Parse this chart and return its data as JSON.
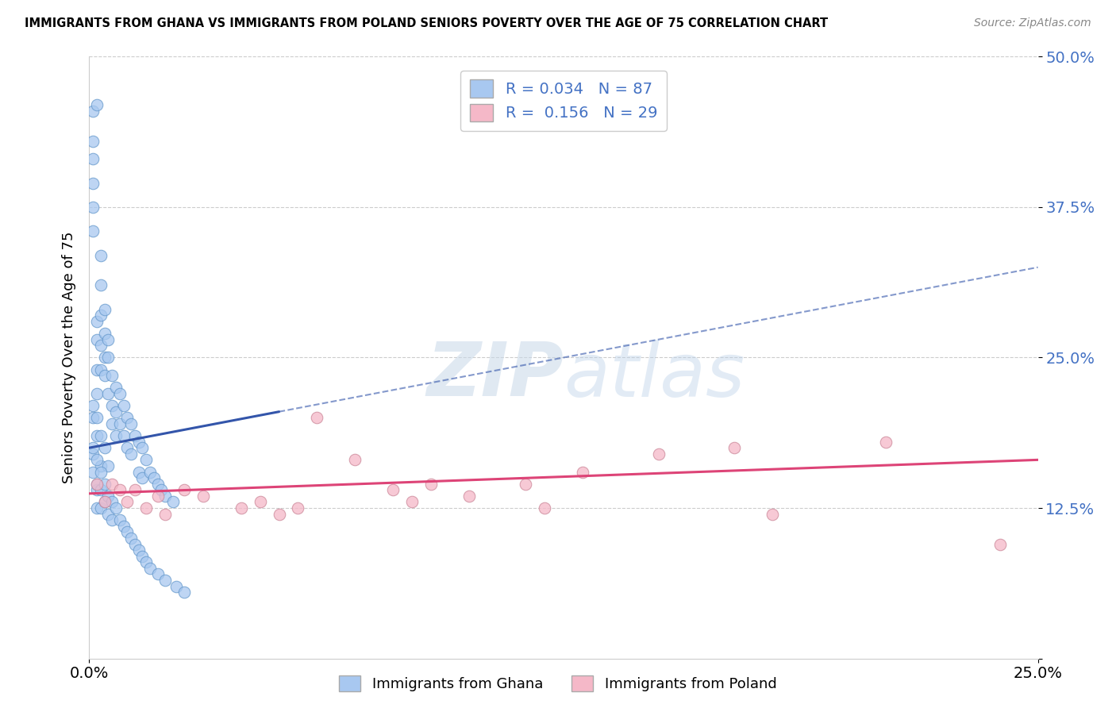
{
  "title": "IMMIGRANTS FROM GHANA VS IMMIGRANTS FROM POLAND SENIORS POVERTY OVER THE AGE OF 75 CORRELATION CHART",
  "source": "Source: ZipAtlas.com",
  "ylabel": "Seniors Poverty Over the Age of 75",
  "xlabel_ghana": "Immigrants from Ghana",
  "xlabel_poland": "Immigrants from Poland",
  "xlim": [
    0.0,
    0.25
  ],
  "ylim": [
    0.0,
    0.5
  ],
  "ytick_vals": [
    0.0,
    0.125,
    0.25,
    0.375,
    0.5
  ],
  "ytick_labels": [
    "",
    "12.5%",
    "25.0%",
    "37.5%",
    "50.0%"
  ],
  "xtick_vals": [
    0.0,
    0.25
  ],
  "xtick_labels": [
    "0.0%",
    "25.0%"
  ],
  "ghana_R": 0.034,
  "ghana_N": 87,
  "poland_R": 0.156,
  "poland_N": 29,
  "ghana_color": "#a8c8f0",
  "ghana_edge_color": "#6699cc",
  "poland_color": "#f5b8c8",
  "poland_edge_color": "#cc8899",
  "ghana_line_color": "#3355aa",
  "poland_line_color": "#dd4477",
  "legend_text_color": "#4472c4",
  "watermark_color": "#d0dce8",
  "ghana_line_x0": 0.0,
  "ghana_line_x1": 0.05,
  "ghana_line_y0": 0.175,
  "ghana_line_y1": 0.205,
  "poland_line_x0": 0.0,
  "poland_line_x1": 0.25,
  "poland_line_y0": 0.137,
  "poland_line_y1": 0.165,
  "ghana_x": [
    0.001,
    0.001,
    0.001,
    0.001,
    0.001,
    0.001,
    0.001,
    0.001,
    0.001,
    0.002,
    0.002,
    0.002,
    0.002,
    0.002,
    0.002,
    0.002,
    0.002,
    0.002,
    0.003,
    0.003,
    0.003,
    0.003,
    0.003,
    0.003,
    0.003,
    0.004,
    0.004,
    0.004,
    0.004,
    0.004,
    0.005,
    0.005,
    0.005,
    0.005,
    0.006,
    0.006,
    0.006,
    0.007,
    0.007,
    0.007,
    0.008,
    0.008,
    0.009,
    0.009,
    0.01,
    0.01,
    0.011,
    0.011,
    0.012,
    0.013,
    0.013,
    0.014,
    0.014,
    0.015,
    0.016,
    0.017,
    0.018,
    0.019,
    0.02,
    0.022,
    0.001,
    0.001,
    0.002,
    0.002,
    0.003,
    0.003,
    0.003,
    0.004,
    0.004,
    0.005,
    0.005,
    0.006,
    0.006,
    0.007,
    0.008,
    0.009,
    0.01,
    0.011,
    0.012,
    0.013,
    0.014,
    0.015,
    0.016,
    0.018,
    0.02,
    0.023,
    0.025
  ],
  "ghana_y": [
    0.455,
    0.43,
    0.415,
    0.395,
    0.375,
    0.355,
    0.21,
    0.2,
    0.17,
    0.46,
    0.28,
    0.265,
    0.24,
    0.22,
    0.2,
    0.185,
    0.14,
    0.125,
    0.335,
    0.31,
    0.285,
    0.26,
    0.24,
    0.185,
    0.16,
    0.29,
    0.27,
    0.25,
    0.235,
    0.175,
    0.265,
    0.25,
    0.22,
    0.16,
    0.235,
    0.21,
    0.195,
    0.225,
    0.205,
    0.185,
    0.22,
    0.195,
    0.21,
    0.185,
    0.2,
    0.175,
    0.195,
    0.17,
    0.185,
    0.18,
    0.155,
    0.175,
    0.15,
    0.165,
    0.155,
    0.15,
    0.145,
    0.14,
    0.135,
    0.13,
    0.175,
    0.155,
    0.165,
    0.145,
    0.155,
    0.14,
    0.125,
    0.145,
    0.13,
    0.135,
    0.12,
    0.13,
    0.115,
    0.125,
    0.115,
    0.11,
    0.105,
    0.1,
    0.095,
    0.09,
    0.085,
    0.08,
    0.075,
    0.07,
    0.065,
    0.06,
    0.055
  ],
  "poland_x": [
    0.002,
    0.004,
    0.006,
    0.008,
    0.01,
    0.012,
    0.015,
    0.018,
    0.02,
    0.025,
    0.03,
    0.04,
    0.045,
    0.05,
    0.055,
    0.06,
    0.07,
    0.08,
    0.085,
    0.09,
    0.1,
    0.115,
    0.12,
    0.13,
    0.15,
    0.17,
    0.18,
    0.21,
    0.24
  ],
  "poland_y": [
    0.145,
    0.13,
    0.145,
    0.14,
    0.13,
    0.14,
    0.125,
    0.135,
    0.12,
    0.14,
    0.135,
    0.125,
    0.13,
    0.12,
    0.125,
    0.2,
    0.165,
    0.14,
    0.13,
    0.145,
    0.135,
    0.145,
    0.125,
    0.155,
    0.17,
    0.175,
    0.12,
    0.18,
    0.095
  ]
}
